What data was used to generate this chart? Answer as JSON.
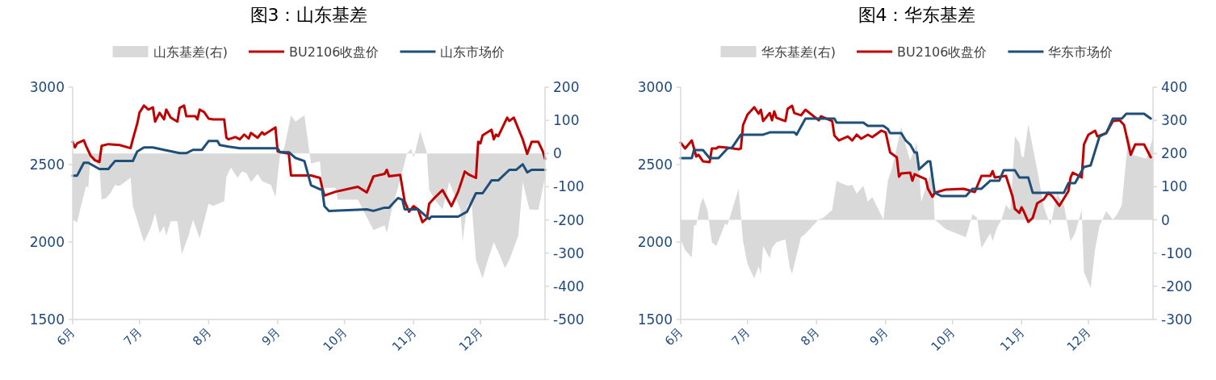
{
  "chart_data": [
    {
      "type": "line",
      "title": "图3：山东基差",
      "legend": "top",
      "xlim": [
        "--06-01",
        "--12-30"
      ],
      "xticks": [
        {
          "value": "--06-01",
          "label": "6月"
        },
        {
          "value": "--07-01",
          "label": "7月"
        },
        {
          "value": "--08-01",
          "label": "8月"
        },
        {
          "value": "--09-01",
          "label": "9月"
        },
        {
          "value": "--10-01",
          "label": "10月"
        },
        {
          "value": "--11-01",
          "label": "11月"
        },
        {
          "value": "--12-01",
          "label": "12月"
        }
      ],
      "ylim": [
        1500,
        3000
      ],
      "yticks": [
        1500,
        2000,
        2500,
        3000
      ],
      "y2lim": [
        -500,
        200
      ],
      "y2ticks": [
        -500,
        -400,
        -300,
        -200,
        -100,
        0,
        100,
        200
      ],
      "series": [
        {
          "name": "山东基差(右)",
          "type": "area",
          "axis": "y2",
          "color": "#d9d9d9",
          "x": [
            "--06-01",
            "--06-03",
            "--06-05",
            "--06-07",
            "--06-08",
            "--06-09",
            "--06-13",
            "--06-14",
            "--06-16",
            "--06-18",
            "--06-20",
            "--06-22",
            "--06-27",
            "--06-28",
            "--07-03",
            "--07-06",
            "--07-08",
            "--07-10",
            "--07-12",
            "--07-13",
            "--07-15",
            "--07-18",
            "--07-20",
            "--07-23",
            "--07-25",
            "--07-28",
            "--08-01",
            "--08-03",
            "--08-08",
            "--08-09",
            "--08-11",
            "--08-14",
            "--08-16",
            "--08-18",
            "--08-20",
            "--08-23",
            "--08-25",
            "--08-29",
            "--08-31",
            "--09-02",
            "--09-04",
            "--09-07",
            "--09-09",
            "--09-13",
            "--09-16",
            "--09-20",
            "--09-21",
            "--09-27",
            "--09-28",
            "--10-07",
            "--10-14",
            "--10-19",
            "--10-20",
            "--10-22",
            "--10-27",
            "--10-29",
            "--10-31",
            "--11-01",
            "--11-04",
            "--11-07",
            "--11-08",
            "--11-11",
            "--11-14",
            "--11-17",
            "--11-22",
            "--11-23",
            "--11-25",
            "--11-27",
            "--11-29",
            "--12-02",
            "--12-04",
            "--12-07",
            "--12-09",
            "--12-12",
            "--12-14",
            "--12-18",
            "--12-20",
            "--12-23",
            "--12-27",
            "--12-30"
          ],
          "values": [
            -199,
            -207,
            -151,
            -98,
            -103,
            -13,
            -37,
            -139,
            -134,
            -119,
            -95,
            -98,
            -73,
            -158,
            -267,
            -224,
            -180,
            -240,
            -219,
            -248,
            -204,
            -204,
            -303,
            -248,
            -199,
            -255,
            -151,
            -158,
            -144,
            -71,
            -42,
            -73,
            -54,
            -59,
            -86,
            -61,
            -83,
            -95,
            -132,
            -6,
            18,
            115,
            96,
            115,
            -30,
            -23,
            -103,
            -103,
            -139,
            -139,
            -231,
            -216,
            -240,
            -175,
            -54,
            0,
            14,
            -13,
            67,
            1,
            -110,
            -144,
            -168,
            -86,
            -168,
            -265,
            -158,
            -144,
            -320,
            -376,
            -328,
            -267,
            -296,
            -345,
            -320,
            -248,
            -86,
            -168,
            -170,
            -71
          ]
        },
        {
          "name": "BU2106收盘价",
          "color": "#c00000",
          "x": [
            "--06-01",
            "--06-02",
            "--06-03",
            "--06-06",
            "--06-07",
            "--06-09",
            "--06-11",
            "--06-13",
            "--06-14",
            "--06-17",
            "--06-22",
            "--06-27",
            "--06-28",
            "--06-30",
            "--07-01",
            "--07-03",
            "--07-05",
            "--07-07",
            "--07-08",
            "--07-10",
            "--07-12",
            "--07-13",
            "--07-15",
            "--07-18",
            "--07-19",
            "--07-21",
            "--07-22",
            "--07-26",
            "--07-27",
            "--07-28",
            "--07-30",
            "--08-01",
            "--08-03",
            "--08-08",
            "--08-09",
            "--08-10",
            "--08-13",
            "--08-15",
            "--08-17",
            "--08-19",
            "--08-20",
            "--08-23",
            "--08-25",
            "--08-26",
            "--08-31",
            "--09-01",
            "--09-06",
            "--09-07",
            "--09-16",
            "--09-20",
            "--09-21",
            "--09-22",
            "--09-27",
            "--10-07",
            "--10-11",
            "--10-14",
            "--10-19",
            "--10-20",
            "--10-21",
            "--10-26",
            "--10-28",
            "--10-30",
            "--11-01",
            "--11-03",
            "--11-05",
            "--11-07",
            "--11-08",
            "--11-10",
            "--11-14",
            "--11-18",
            "--11-21",
            "--11-24",
            "--11-26",
            "--11-29",
            "--11-30",
            "--12-01",
            "--12-02",
            "--12-06",
            "--12-07",
            "--12-08",
            "--12-09",
            "--12-13",
            "--12-14",
            "--12-16",
            "--12-20",
            "--12-22",
            "--12-24",
            "--12-27",
            "--12-29",
            "--12-30"
          ],
          "values": [
            2647,
            2611,
            2637,
            2657,
            2621,
            2559,
            2528,
            2517,
            2621,
            2632,
            2626,
            2606,
            2663,
            2766,
            2836,
            2881,
            2855,
            2870,
            2777,
            2834,
            2792,
            2855,
            2803,
            2777,
            2865,
            2881,
            2813,
            2813,
            2792,
            2855,
            2839,
            2797,
            2792,
            2792,
            2673,
            2663,
            2678,
            2663,
            2694,
            2668,
            2704,
            2673,
            2709,
            2694,
            2740,
            2585,
            2570,
            2430,
            2430,
            2414,
            2351,
            2300,
            2325,
            2357,
            2320,
            2424,
            2440,
            2466,
            2424,
            2434,
            2263,
            2196,
            2232,
            2211,
            2128,
            2154,
            2247,
            2279,
            2336,
            2232,
            2325,
            2455,
            2434,
            2414,
            2647,
            2637,
            2689,
            2725,
            2663,
            2694,
            2683,
            2803,
            2782,
            2803,
            2663,
            2569,
            2647,
            2647,
            2585,
            2538
          ]
        },
        {
          "name": "山东市场价",
          "color": "#1f4e79",
          "x": [
            "--06-01",
            "--06-03",
            "--06-06",
            "--06-08",
            "--06-13",
            "--06-17",
            "--06-20",
            "--06-28",
            "--06-30",
            "--07-03",
            "--07-07",
            "--07-12",
            "--07-19",
            "--07-22",
            "--07-25",
            "--07-29",
            "--08-01",
            "--08-05",
            "--08-06",
            "--08-10",
            "--08-15",
            "--09-01",
            "--09-02",
            "--09-06",
            "--09-09",
            "--09-13",
            "--09-16",
            "--09-20",
            "--09-21",
            "--09-22",
            "--09-24",
            "--10-11",
            "--10-14",
            "--10-19",
            "--10-21",
            "--10-25",
            "--10-27",
            "--10-28",
            "--11-03",
            "--11-08",
            "--11-09",
            "--11-21",
            "--11-25",
            "--11-29",
            "--12-02",
            "--12-06",
            "--12-09",
            "--12-14",
            "--12-17",
            "--12-20",
            "--12-22",
            "--12-24",
            "--12-30"
          ],
          "values": [
            2429,
            2429,
            2512,
            2512,
            2471,
            2471,
            2523,
            2523,
            2585,
            2611,
            2611,
            2595,
            2574,
            2574,
            2595,
            2595,
            2652,
            2652,
            2626,
            2616,
            2606,
            2606,
            2580,
            2580,
            2543,
            2523,
            2367,
            2341,
            2336,
            2232,
            2201,
            2211,
            2201,
            2222,
            2222,
            2284,
            2273,
            2211,
            2211,
            2149,
            2164,
            2164,
            2196,
            2315,
            2315,
            2398,
            2398,
            2466,
            2466,
            2502,
            2450,
            2466,
            2466
          ]
        }
      ]
    },
    {
      "type": "line",
      "title": "图4：华东基差",
      "legend": "top",
      "xlim": [
        "--06-01",
        "--12-30"
      ],
      "xticks": [
        {
          "value": "--06-01",
          "label": "6月"
        },
        {
          "value": "--07-01",
          "label": "7月"
        },
        {
          "value": "--08-01",
          "label": "8月"
        },
        {
          "value": "--09-01",
          "label": "9月"
        },
        {
          "value": "--10-01",
          "label": "10月"
        },
        {
          "value": "--11-01",
          "label": "11月"
        },
        {
          "value": "--12-01",
          "label": "12月"
        }
      ],
      "ylim": [
        1500,
        3000
      ],
      "yticks": [
        1500,
        2000,
        2500,
        3000
      ],
      "y2lim": [
        -300,
        400
      ],
      "y2ticks": [
        -300,
        -200,
        -100,
        0,
        100,
        200,
        300,
        400
      ],
      "series": [
        {
          "name": "华东基差(右)",
          "type": "area",
          "axis": "y2",
          "color": "#d9d9d9",
          "x": [
            "--06-01",
            "--06-03",
            "--06-06",
            "--06-07",
            "--06-08",
            "--06-10",
            "--06-11",
            "--06-13",
            "--06-15",
            "--06-17",
            "--06-21",
            "--06-22",
            "--06-27",
            "--06-29",
            "--07-01",
            "--07-04",
            "--07-06",
            "--07-07",
            "--07-08",
            "--07-11",
            "--07-12",
            "--07-14",
            "--07-18",
            "--07-20",
            "--07-21",
            "--07-25",
            "--07-27",
            "--08-02",
            "--08-04",
            "--08-08",
            "--08-10",
            "--08-12",
            "--08-15",
            "--08-17",
            "--08-19",
            "--08-22",
            "--08-24",
            "--08-26",
            "--08-31",
            "--09-02",
            "--09-04",
            "--09-07",
            "--09-08",
            "--09-10",
            "--09-12",
            "--09-15",
            "--09-17",
            "--09-20",
            "--09-22",
            "--09-23",
            "--09-28",
            "--10-07",
            "--10-10",
            "--10-12",
            "--10-14",
            "--10-18",
            "--10-19",
            "--10-21",
            "--10-23",
            "--10-25",
            "--10-27",
            "--10-29",
            "--10-31",
            "--11-01",
            "--11-02",
            "--11-04",
            "--11-08",
            "--11-11",
            "--11-14",
            "--11-17",
            "--11-20",
            "--11-23",
            "--11-25",
            "--11-28",
            "--11-29",
            "--12-02",
            "--12-04",
            "--12-06",
            "--12-09",
            "--12-12",
            "--12-14",
            "--12-16",
            "--12-19",
            "--12-21",
            "--12-27",
            "--12-30"
          ],
          "values": [
            -60,
            -91,
            -113,
            -16,
            -16,
            50,
            67,
            30,
            -67,
            -79,
            -11,
            -16,
            94,
            -64,
            -132,
            -176,
            -140,
            -164,
            -79,
            -115,
            -84,
            -67,
            -59,
            -145,
            -162,
            -52,
            -42,
            2,
            6,
            30,
            118,
            111,
            103,
            106,
            79,
            103,
            55,
            69,
            1,
            118,
            159,
            249,
            281,
            225,
            179,
            232,
            55,
            118,
            159,
            1,
            -28,
            -52,
            18,
            6,
            -84,
            -40,
            -64,
            -23,
            1,
            45,
            30,
            252,
            232,
            191,
            189,
            288,
            152,
            38,
            -16,
            79,
            45,
            -64,
            -40,
            30,
            -157,
            -205,
            -89,
            -18,
            26,
            1,
            18,
            45,
            257,
            196,
            184,
            249
          ]
        },
        {
          "name": "BU2106收盘价",
          "color": "#c00000",
          "x": [
            "--06-01",
            "--06-03",
            "--06-06",
            "--06-08",
            "--06-09",
            "--06-11",
            "--06-14",
            "--06-15",
            "--06-17",
            "--06-18",
            "--06-22",
            "--06-27",
            "--06-28",
            "--06-29",
            "--07-01",
            "--07-04",
            "--07-06",
            "--07-07",
            "--07-08",
            "--07-11",
            "--07-12",
            "--07-13",
            "--07-14",
            "--07-18",
            "--07-19",
            "--07-21",
            "--07-22",
            "--07-25",
            "--07-27",
            "--08-02",
            "--08-03",
            "--08-08",
            "--08-09",
            "--08-11",
            "--08-15",
            "--08-17",
            "--08-19",
            "--08-21",
            "--08-24",
            "--08-26",
            "--08-30",
            "--09-01",
            "--09-03",
            "--09-06",
            "--09-07",
            "--09-08",
            "--09-12",
            "--09-13",
            "--09-14",
            "--09-19",
            "--09-20",
            "--09-22",
            "--09-23",
            "--09-28",
            "--10-06",
            "--10-11",
            "--10-14",
            "--10-18",
            "--10-19",
            "--10-20",
            "--10-25",
            "--10-28",
            "--10-29",
            "--10-31",
            "--11-01",
            "--11-02",
            "--11-04",
            "--11-06",
            "--11-08",
            "--11-11",
            "--11-13",
            "--11-15",
            "--11-18",
            "--11-22",
            "--11-23",
            "--11-24",
            "--11-28",
            "--11-29",
            "--12-01",
            "--12-04",
            "--12-05",
            "--12-09",
            "--12-12",
            "--12-15",
            "--12-17",
            "--12-20",
            "--12-22",
            "--12-26",
            "--12-29"
          ],
          "values": [
            2641,
            2604,
            2656,
            2552,
            2563,
            2521,
            2516,
            2604,
            2604,
            2615,
            2609,
            2599,
            2604,
            2755,
            2823,
            2870,
            2828,
            2854,
            2781,
            2833,
            2786,
            2844,
            2802,
            2781,
            2859,
            2880,
            2833,
            2818,
            2854,
            2786,
            2812,
            2781,
            2688,
            2656,
            2682,
            2656,
            2693,
            2667,
            2693,
            2677,
            2719,
            2708,
            2578,
            2547,
            2422,
            2443,
            2448,
            2396,
            2438,
            2406,
            2344,
            2292,
            2318,
            2339,
            2344,
            2323,
            2427,
            2427,
            2458,
            2417,
            2427,
            2292,
            2214,
            2188,
            2224,
            2198,
            2130,
            2156,
            2250,
            2276,
            2318,
            2292,
            2234,
            2328,
            2417,
            2448,
            2417,
            2630,
            2693,
            2719,
            2682,
            2703,
            2781,
            2786,
            2755,
            2563,
            2630,
            2630,
            2547
          ]
        },
        {
          "name": "华东市场价",
          "color": "#1f4e79",
          "x": [
            "--06-01",
            "--06-06",
            "--06-07",
            "--06-11",
            "--06-14",
            "--06-18",
            "--06-22",
            "--06-24",
            "--06-28",
            "--07-08",
            "--07-11",
            "--07-22",
            "--07-23",
            "--07-27",
            "--08-09",
            "--08-10",
            "--08-22",
            "--08-24",
            "--08-31",
            "--09-02",
            "--09-03",
            "--09-08",
            "--09-10",
            "--09-12",
            "--09-14",
            "--09-15",
            "--09-16",
            "--09-20",
            "--09-21",
            "--09-23",
            "--09-26",
            "--10-07",
            "--10-10",
            "--10-14",
            "--10-18",
            "--10-22",
            "--10-24",
            "--10-29",
            "--10-31",
            "--11-04",
            "--11-06",
            "--11-20",
            "--11-22",
            "--11-25",
            "--11-29",
            "--12-02",
            "--12-06",
            "--12-09",
            "--12-12",
            "--12-16",
            "--12-18",
            "--12-26",
            "--12-29"
          ],
          "values": [
            2542,
            2542,
            2594,
            2594,
            2542,
            2542,
            2604,
            2609,
            2693,
            2693,
            2708,
            2708,
            2693,
            2797,
            2797,
            2771,
            2771,
            2750,
            2750,
            2729,
            2703,
            2703,
            2656,
            2630,
            2578,
            2578,
            2469,
            2521,
            2521,
            2318,
            2297,
            2297,
            2344,
            2344,
            2396,
            2396,
            2464,
            2464,
            2417,
            2417,
            2318,
            2318,
            2380,
            2380,
            2484,
            2495,
            2682,
            2703,
            2797,
            2797,
            2828,
            2828,
            2797
          ]
        }
      ]
    }
  ]
}
